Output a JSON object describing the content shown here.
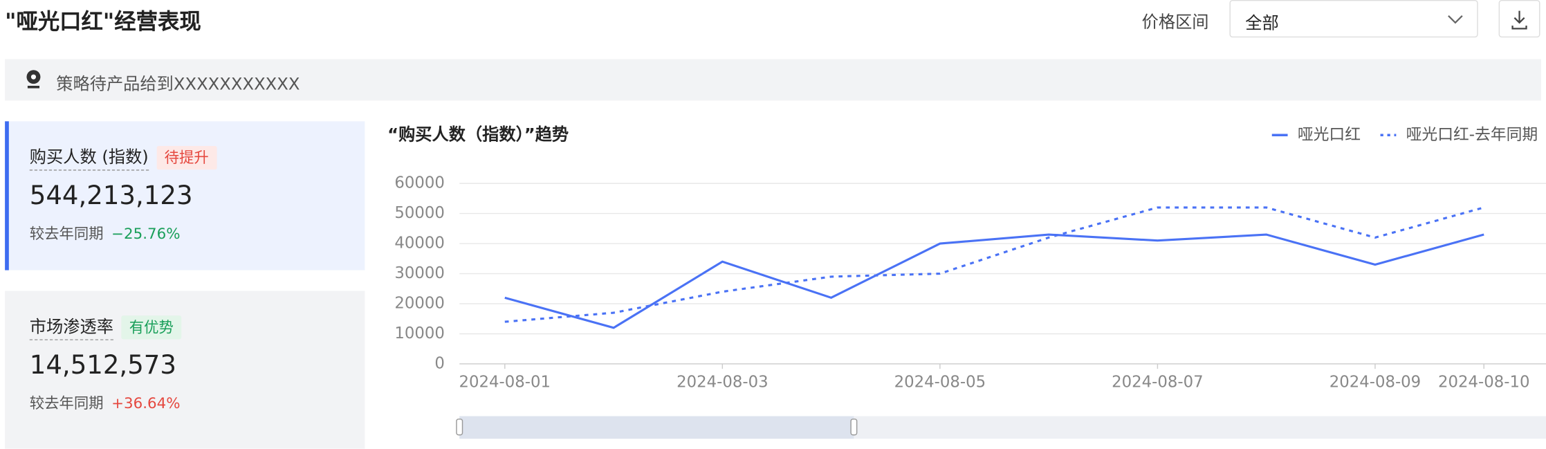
{
  "header": {
    "title": "\"哑光口红\"经营表现",
    "price_label": "价格区间",
    "price_value": "全部"
  },
  "notice": "策略待产品给到XXXXXXXXXXX",
  "cards": [
    {
      "name": "购买人数 (指数)",
      "tag": "待提升",
      "value": "544,213,123",
      "compare_label": "较去年同期",
      "change": "−25.76%"
    },
    {
      "name": "市场渗透率",
      "tag": "有优势",
      "value": "14,512,573",
      "compare_label": "较去年同期",
      "change": "+36.64%"
    }
  ],
  "chart_data": {
    "type": "line",
    "title": "“购买人数（指数）”趋势",
    "categories": [
      "2024-08-01",
      null,
      "2024-08-03",
      null,
      "2024-08-05",
      null,
      "2024-08-07",
      null,
      "2024-08-09",
      "2024-08-10"
    ],
    "series": [
      {
        "name": "哑光口红",
        "color": "#4a72f5",
        "dashed": false,
        "values": [
          22000,
          12000,
          34000,
          22000,
          40000,
          43000,
          41000,
          43000,
          33000,
          43000
        ]
      },
      {
        "name": "哑光口红-去年同期",
        "color": "#4a72f5",
        "dashed": true,
        "values": [
          14000,
          17000,
          24000,
          29000,
          30000,
          42000,
          52000,
          52000,
          42000,
          52000
        ]
      }
    ],
    "ylim": [
      0,
      60000
    ],
    "yticks": [
      0,
      10000,
      20000,
      30000,
      40000,
      50000,
      60000
    ],
    "grid": true
  }
}
